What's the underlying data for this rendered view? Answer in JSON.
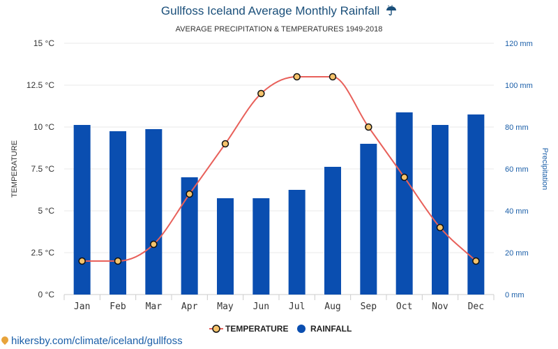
{
  "header": {
    "title": "Gullfoss Iceland Average Monthly Rainfall",
    "title_icon": "umbrella-rain-icon",
    "subtitle": "AVERAGE PRECIPITATION & TEMPERATURES 1949-2018"
  },
  "chart_data": {
    "type": "bar",
    "categories": [
      "Jan",
      "Feb",
      "Mar",
      "Apr",
      "May",
      "Jun",
      "Jul",
      "Aug",
      "Sep",
      "Oct",
      "Nov",
      "Dec"
    ],
    "series": [
      {
        "name": "RAINFALL",
        "type": "bar",
        "axis": "right",
        "unit": "mm",
        "color": "#0a4eb0",
        "values": [
          81,
          78,
          79,
          56,
          46,
          46,
          50,
          61,
          72,
          87,
          81,
          86
        ]
      },
      {
        "name": "TEMPERATURE",
        "type": "line",
        "axis": "left",
        "unit": "°C",
        "color": "#e8605a",
        "values": [
          2,
          2,
          3,
          6,
          9,
          12,
          13,
          13,
          10,
          7,
          4,
          2
        ]
      }
    ],
    "ylabel": "TEMPERATURE",
    "y2label": "Precipitation",
    "ylim": [
      0,
      15
    ],
    "y2lim": [
      0,
      120
    ],
    "left_ticks": [
      "0 °C",
      "2.5 °C",
      "5 °C",
      "7.5 °C",
      "10 °C",
      "12.5 °C",
      "15 °C"
    ],
    "right_ticks": [
      "0 mm",
      "20 mm",
      "40 mm",
      "60 mm",
      "80 mm",
      "100 mm",
      "120 mm"
    ],
    "grid": true,
    "legend_position": "bottom-center",
    "legend": [
      {
        "label": "TEMPERATURE",
        "marker": "circle",
        "color": "#f5c36b"
      },
      {
        "label": "RAINFALL",
        "marker": "circle",
        "color": "#0a4eb0"
      }
    ]
  },
  "footer": {
    "source": "hikersby.com/climate/iceland/gullfoss",
    "source_icon": "map-pin-icon"
  }
}
